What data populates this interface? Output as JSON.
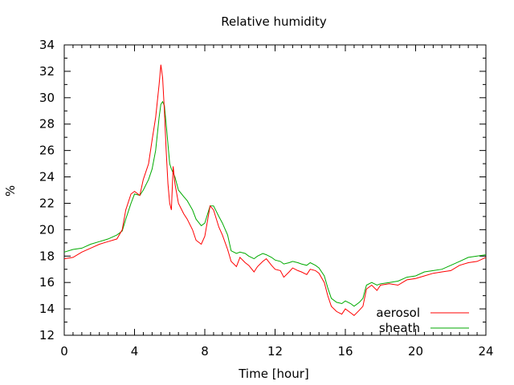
{
  "chart_data": {
    "type": "line",
    "title": "Relative humidity",
    "xlabel": "Time [hour]",
    "ylabel": "%",
    "xlim": [
      0,
      24
    ],
    "ylim": [
      12,
      34
    ],
    "xticks": [
      0,
      4,
      8,
      12,
      16,
      20,
      24
    ],
    "yticks": [
      12,
      14,
      16,
      18,
      20,
      22,
      24,
      26,
      28,
      30,
      32,
      34
    ],
    "legend_position": "bottom-right",
    "grid": false,
    "series": [
      {
        "name": "aerosol",
        "color": "#ff0000",
        "x": [
          0,
          0.5,
          1,
          1.5,
          2,
          2.5,
          3,
          3.3,
          3.5,
          3.8,
          4,
          4.3,
          4.5,
          4.8,
          5,
          5.2,
          5.4,
          5.5,
          5.6,
          5.7,
          5.8,
          5.9,
          6,
          6.1,
          6.2,
          6.3,
          6.5,
          6.8,
          7,
          7.3,
          7.5,
          7.8,
          8,
          8.3,
          8.5,
          8.8,
          9,
          9.3,
          9.5,
          9.8,
          10,
          10.3,
          10.5,
          10.8,
          11,
          11.3,
          11.5,
          11.8,
          12,
          12.3,
          12.5,
          12.8,
          13,
          13.3,
          13.5,
          13.8,
          14,
          14.3,
          14.5,
          14.8,
          15,
          15.2,
          15.5,
          15.8,
          16,
          16.3,
          16.5,
          16.8,
          17,
          17.2,
          17.5,
          17.8,
          18,
          18.5,
          19,
          19.5,
          20,
          20.5,
          21,
          21.5,
          22,
          22.5,
          23,
          23.5,
          24
        ],
        "y": [
          17.8,
          17.9,
          18.3,
          18.6,
          18.9,
          19.1,
          19.3,
          20.0,
          21.5,
          22.7,
          22.9,
          22.6,
          23.8,
          25.0,
          26.8,
          28.5,
          31.0,
          32.5,
          31.5,
          29.0,
          26.0,
          23.5,
          22.0,
          21.5,
          24.8,
          23.5,
          22.0,
          21.2,
          20.8,
          20.0,
          19.2,
          18.9,
          19.5,
          21.8,
          21.5,
          20.2,
          19.6,
          18.5,
          17.6,
          17.2,
          17.9,
          17.5,
          17.3,
          16.8,
          17.2,
          17.6,
          17.8,
          17.3,
          17.0,
          16.9,
          16.4,
          16.8,
          17.1,
          16.9,
          16.8,
          16.6,
          17.0,
          16.9,
          16.7,
          16.0,
          15.0,
          14.2,
          13.8,
          13.6,
          14.0,
          13.7,
          13.5,
          13.9,
          14.2,
          15.5,
          15.8,
          15.4,
          15.8,
          15.9,
          15.8,
          16.2,
          16.3,
          16.5,
          16.7,
          16.8,
          16.9,
          17.3,
          17.5,
          17.6,
          17.9
        ]
      },
      {
        "name": "sheath",
        "color": "#00aa00",
        "x": [
          0,
          0.5,
          1,
          1.5,
          2,
          2.5,
          3,
          3.3,
          3.5,
          3.8,
          4,
          4.3,
          4.5,
          4.8,
          5,
          5.2,
          5.4,
          5.5,
          5.6,
          5.7,
          5.8,
          5.9,
          6,
          6.1,
          6.2,
          6.3,
          6.5,
          6.8,
          7,
          7.3,
          7.5,
          7.8,
          8,
          8.3,
          8.5,
          8.8,
          9,
          9.3,
          9.5,
          9.8,
          10,
          10.3,
          10.5,
          10.8,
          11,
          11.3,
          11.5,
          11.8,
          12,
          12.3,
          12.5,
          12.8,
          13,
          13.3,
          13.5,
          13.8,
          14,
          14.3,
          14.5,
          14.8,
          15,
          15.2,
          15.5,
          15.8,
          16,
          16.3,
          16.5,
          16.8,
          17,
          17.2,
          17.5,
          17.8,
          18,
          18.5,
          19,
          19.5,
          20,
          20.5,
          21,
          21.5,
          22,
          22.5,
          23,
          23.5,
          24
        ],
        "y": [
          18.3,
          18.5,
          18.6,
          18.9,
          19.1,
          19.3,
          19.6,
          19.9,
          20.8,
          22.0,
          22.7,
          22.6,
          23.0,
          23.8,
          24.6,
          26.0,
          28.5,
          29.5,
          29.7,
          29.4,
          28.0,
          26.5,
          25.0,
          24.6,
          24.3,
          24.0,
          23.0,
          22.5,
          22.2,
          21.5,
          20.8,
          20.3,
          20.5,
          21.8,
          21.8,
          21.0,
          20.5,
          19.6,
          18.4,
          18.2,
          18.3,
          18.2,
          18.0,
          17.8,
          18.0,
          18.2,
          18.1,
          17.9,
          17.7,
          17.6,
          17.4,
          17.5,
          17.6,
          17.5,
          17.4,
          17.3,
          17.5,
          17.3,
          17.1,
          16.5,
          15.6,
          14.8,
          14.5,
          14.4,
          14.6,
          14.4,
          14.2,
          14.5,
          14.8,
          15.8,
          16.0,
          15.8,
          15.9,
          16.0,
          16.1,
          16.4,
          16.5,
          16.8,
          16.9,
          17.0,
          17.3,
          17.6,
          17.9,
          18.0,
          18.1
        ]
      }
    ]
  }
}
